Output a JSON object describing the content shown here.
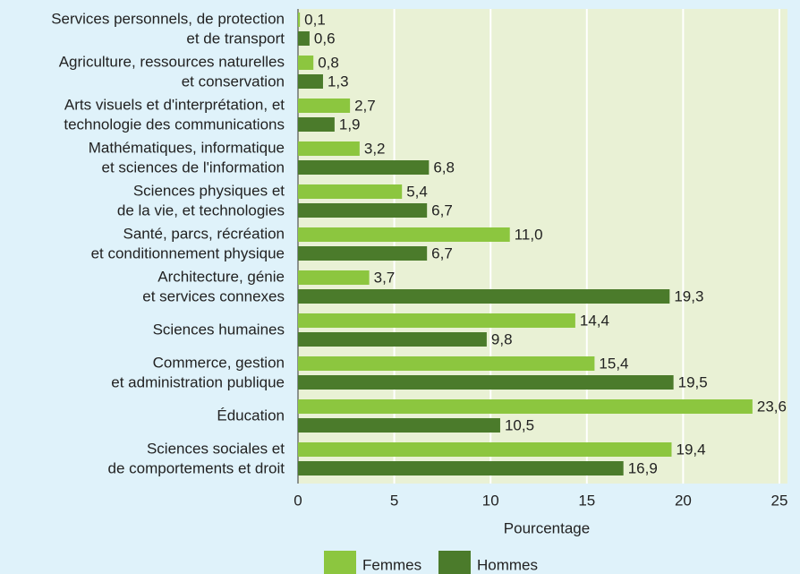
{
  "chart_data": {
    "type": "barh",
    "categories": [
      [
        "Services personnels, de protection",
        "et de transport"
      ],
      [
        "Agriculture, ressources naturelles",
        "et conservation"
      ],
      [
        "Arts visuels et d'interprétation, et",
        "technologie des communications"
      ],
      [
        "Mathématiques, informatique",
        "et sciences de l'information"
      ],
      [
        "Sciences physiques et",
        "de la vie, et technologies"
      ],
      [
        "Santé, parcs, récréation",
        "et conditionnement physique"
      ],
      [
        "Architecture, génie",
        "et services connexes"
      ],
      [
        "Sciences humaines"
      ],
      [
        "Commerce, gestion",
        "et administration publique"
      ],
      [
        "Éducation"
      ],
      [
        "Sciences sociales et",
        "de comportements et droit"
      ]
    ],
    "series": [
      {
        "name": "Femmes",
        "color": "#8cc63f",
        "values": [
          0.1,
          0.8,
          2.7,
          3.2,
          5.4,
          11.0,
          3.7,
          14.4,
          15.4,
          23.6,
          19.4
        ],
        "value_labels": [
          "0,1",
          "0,8",
          "2,7",
          "3,2",
          "5,4",
          "11,0",
          "3,7",
          "14,4",
          "15,4",
          "23,6",
          "19,4"
        ]
      },
      {
        "name": "Hommes",
        "color": "#4b7b2b",
        "values": [
          0.6,
          1.3,
          1.9,
          6.8,
          6.7,
          6.7,
          19.3,
          9.8,
          19.5,
          10.5,
          16.9
        ],
        "value_labels": [
          "0,6",
          "1,3",
          "1,9",
          "6,8",
          "6,7",
          "6,7",
          "19,3",
          "9,8",
          "19,5",
          "10,5",
          "16,9"
        ]
      }
    ],
    "xlabel": "Pourcentage",
    "xlim": [
      0,
      25
    ],
    "xticks": [
      0,
      5,
      10,
      15,
      20,
      25
    ],
    "grid": true,
    "legend": "bottom"
  }
}
